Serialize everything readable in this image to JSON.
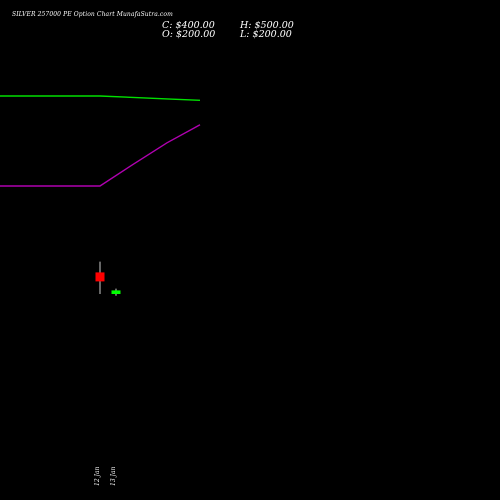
{
  "header": {
    "title": "SILVER 257000 PE Option Chart MunafaSutra.com",
    "close": "C: $400.00",
    "high": "H: $500.00",
    "open": "O: $200.00",
    "low": "L: $200.00"
  },
  "colors": {
    "background": "#000000",
    "text": "#ffffff",
    "green_line": "#00e000",
    "purple_line": "#b000b0",
    "candle_down": "#ff0000",
    "candle_up": "#00ff00",
    "wick": "#ffffff"
  },
  "chart_data": {
    "type": "candlestick",
    "title": "SILVER 257000 PE Option Chart MunafaSutra.com",
    "xlabel": "",
    "ylabel": "",
    "x_tick_labels": [
      "12 Jan",
      "13 Jan"
    ],
    "candles": [
      {
        "date": "12 Jan",
        "open": 4100,
        "high": 4400,
        "low": 3500,
        "close": 3850,
        "color": "red"
      },
      {
        "date": "13 Jan",
        "open": 3500,
        "high": 3650,
        "low": 3450,
        "close": 3600,
        "color": "green"
      }
    ],
    "series": [
      {
        "type": "line",
        "color": "green",
        "values": [
          9000,
          9000,
          9000,
          8960,
          8920,
          8880
        ]
      },
      {
        "type": "line",
        "color": "purple",
        "values": [
          6500,
          6500,
          6500,
          7100,
          7700,
          8200
        ]
      }
    ],
    "series_x": [
      0,
      50,
      100,
      133,
      167,
      200
    ],
    "ylim": [
      0,
      10000
    ],
    "xlim": [
      0,
      500
    ],
    "grid": false
  }
}
